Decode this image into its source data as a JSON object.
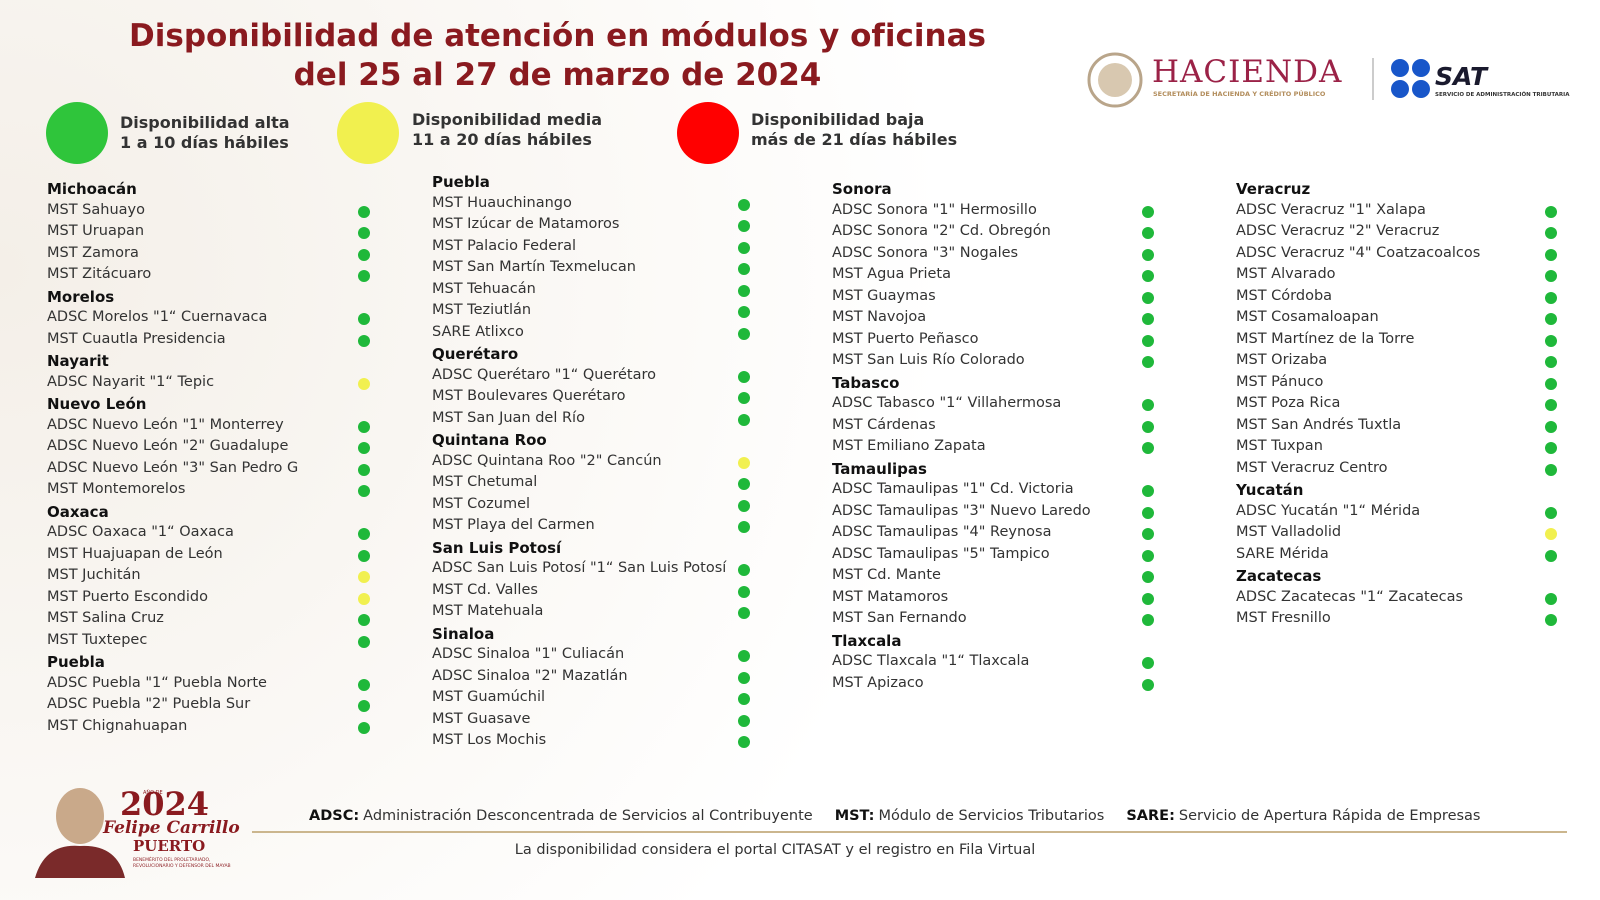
{
  "header": {
    "title_lines": [
      "Disponibilidad de atención en módulos y oficinas",
      "del 25 al 27 de marzo de 2024"
    ],
    "hacienda": "HACIENDA",
    "hacienda_sub": "SECRETARÍA DE HACIENDA Y CRÉDITO PÚBLICO",
    "sat": "SAT",
    "sat_sub": "SERVICIO DE ADMINISTRACIÓN TRIBUTARIA"
  },
  "legend": [
    {
      "color": "#2fc53b",
      "lines": [
        "Disponibilidad alta",
        "1 a 10 días hábiles"
      ]
    },
    {
      "color": "#f1f04f",
      "lines": [
        "Disponibilidad media",
        "11 a 20 días hábiles"
      ]
    },
    {
      "color": "#ff0000",
      "lines": [
        "Disponibilidad baja",
        "más de 21 días hábiles"
      ]
    }
  ],
  "columns": [
    {
      "groups": [
        {
          "state": "Michoacán",
          "offices": [
            {
              "name": "MST Sahuayo",
              "color": "#1fb83a"
            },
            {
              "name": "MST Uruapan",
              "color": "#1fb83a"
            },
            {
              "name": "MST Zamora",
              "color": "#1fb83a"
            },
            {
              "name": "MST Zitácuaro",
              "color": "#1fb83a"
            }
          ]
        },
        {
          "state": "Morelos",
          "offices": [
            {
              "name": "ADSC Morelos \"1“ Cuernavaca",
              "color": "#1fb83a"
            },
            {
              "name": "MST Cuautla Presidencia",
              "color": "#1fb83a"
            }
          ]
        },
        {
          "state": "Nayarit",
          "offices": [
            {
              "name": "ADSC Nayarit \"1“ Tepic",
              "color": "#f1f04f"
            }
          ]
        },
        {
          "state": "Nuevo León",
          "offices": [
            {
              "name": "ADSC Nuevo León \"1\" Monterrey",
              "color": "#1fb83a"
            },
            {
              "name": "ADSC Nuevo León \"2\" Guadalupe",
              "color": "#1fb83a"
            },
            {
              "name": "ADSC Nuevo León \"3\" San Pedro G",
              "color": "#1fb83a"
            },
            {
              "name": "MST Montemorelos",
              "color": "#1fb83a"
            }
          ]
        },
        {
          "state": "Oaxaca",
          "offices": [
            {
              "name": "ADSC Oaxaca \"1“ Oaxaca",
              "color": "#1fb83a"
            },
            {
              "name": "MST Huajuapan de León",
              "color": "#1fb83a"
            },
            {
              "name": "MST Juchitán",
              "color": "#f1f04f"
            },
            {
              "name": "MST Puerto Escondido",
              "color": "#f1f04f"
            },
            {
              "name": "MST Salina Cruz",
              "color": "#1fb83a"
            },
            {
              "name": "MST Tuxtepec",
              "color": "#1fb83a"
            }
          ]
        },
        {
          "state": "Puebla",
          "offices": [
            {
              "name": "ADSC Puebla \"1“ Puebla Norte",
              "color": "#1fb83a"
            },
            {
              "name": "ADSC Puebla \"2\" Puebla Sur",
              "color": "#1fb83a"
            },
            {
              "name": "MST Chignahuapan",
              "color": "#1fb83a"
            }
          ]
        }
      ]
    },
    {
      "groups": [
        {
          "state": "Puebla",
          "offices": [
            {
              "name": "MST Huauchinango",
              "color": "#1fb83a"
            },
            {
              "name": "MST Izúcar de Matamoros",
              "color": "#1fb83a"
            },
            {
              "name": "MST Palacio Federal",
              "color": "#1fb83a"
            },
            {
              "name": "MST San Martín Texmelucan",
              "color": "#1fb83a"
            },
            {
              "name": "MST Tehuacán",
              "color": "#1fb83a"
            },
            {
              "name": "MST Teziutlán",
              "color": "#1fb83a"
            },
            {
              "name": "SARE Atlixco",
              "color": "#1fb83a"
            }
          ]
        },
        {
          "state": "Querétaro",
          "offices": [
            {
              "name": "ADSC Querétaro \"1“ Querétaro",
              "color": "#1fb83a"
            },
            {
              "name": "MST Boulevares Querétaro",
              "color": "#1fb83a"
            },
            {
              "name": "MST San Juan del Río",
              "color": "#1fb83a"
            }
          ]
        },
        {
          "state": "Quintana Roo",
          "offices": [
            {
              "name": "ADSC Quintana Roo \"2\" Cancún",
              "color": "#f1f04f"
            },
            {
              "name": "MST Chetumal",
              "color": "#1fb83a"
            },
            {
              "name": "MST Cozumel",
              "color": "#1fb83a"
            },
            {
              "name": "MST Playa del Carmen",
              "color": "#1fb83a"
            }
          ]
        },
        {
          "state": "San Luis Potosí",
          "offices": [
            {
              "name": "ADSC San Luis Potosí \"1“ San Luis Potosí",
              "color": "#1fb83a"
            },
            {
              "name": "MST Cd. Valles",
              "color": "#1fb83a"
            },
            {
              "name": "MST Matehuala",
              "color": "#1fb83a"
            }
          ]
        },
        {
          "state": "Sinaloa",
          "offices": [
            {
              "name": "ADSC Sinaloa \"1\" Culiacán",
              "color": "#1fb83a"
            },
            {
              "name": "ADSC Sinaloa \"2\" Mazatlán",
              "color": "#1fb83a"
            },
            {
              "name": "MST Guamúchil",
              "color": "#1fb83a"
            },
            {
              "name": "MST Guasave",
              "color": "#1fb83a"
            },
            {
              "name": "MST Los Mochis",
              "color": "#1fb83a"
            }
          ]
        }
      ]
    },
    {
      "groups": [
        {
          "state": "Sonora",
          "offices": [
            {
              "name": "ADSC Sonora \"1\" Hermosillo",
              "color": "#1fb83a"
            },
            {
              "name": "ADSC Sonora \"2\" Cd. Obregón",
              "color": "#1fb83a"
            },
            {
              "name": "ADSC Sonora \"3\" Nogales",
              "color": "#1fb83a"
            },
            {
              "name": "MST Agua Prieta",
              "color": "#1fb83a"
            },
            {
              "name": "MST Guaymas",
              "color": "#1fb83a"
            },
            {
              "name": "MST Navojoa",
              "color": "#1fb83a"
            },
            {
              "name": "MST Puerto Peñasco",
              "color": "#1fb83a"
            },
            {
              "name": "MST San Luis Río Colorado",
              "color": "#1fb83a"
            }
          ]
        },
        {
          "state": "Tabasco",
          "offices": [
            {
              "name": "ADSC Tabasco \"1“ Villahermosa",
              "color": "#1fb83a"
            },
            {
              "name": "MST Cárdenas",
              "color": "#1fb83a"
            },
            {
              "name": "MST Emiliano Zapata",
              "color": "#1fb83a"
            }
          ]
        },
        {
          "state": "Tamaulipas",
          "offices": [
            {
              "name": "ADSC Tamaulipas \"1\" Cd. Victoria",
              "color": "#1fb83a"
            },
            {
              "name": "ADSC Tamaulipas \"3\" Nuevo Laredo",
              "color": "#1fb83a"
            },
            {
              "name": "ADSC Tamaulipas \"4\" Reynosa",
              "color": "#1fb83a"
            },
            {
              "name": "ADSC Tamaulipas \"5\" Tampico",
              "color": "#1fb83a"
            },
            {
              "name": "MST Cd. Mante",
              "color": "#1fb83a"
            },
            {
              "name": "MST Matamoros",
              "color": "#1fb83a"
            },
            {
              "name": "MST San Fernando",
              "color": "#1fb83a"
            }
          ]
        },
        {
          "state": "Tlaxcala",
          "offices": [
            {
              "name": "ADSC Tlaxcala \"1“ Tlaxcala",
              "color": "#1fb83a"
            },
            {
              "name": "MST Apizaco",
              "color": "#1fb83a"
            }
          ]
        }
      ]
    },
    {
      "groups": [
        {
          "state": "Veracruz",
          "offices": [
            {
              "name": "ADSC Veracruz \"1\" Xalapa",
              "color": "#1fb83a"
            },
            {
              "name": "ADSC Veracruz \"2\" Veracruz",
              "color": "#1fb83a"
            },
            {
              "name": "ADSC Veracruz \"4\" Coatzacoalcos",
              "color": "#1fb83a"
            },
            {
              "name": "MST Alvarado",
              "color": "#1fb83a"
            },
            {
              "name": "MST Córdoba",
              "color": "#1fb83a"
            },
            {
              "name": "MST Cosamaloapan",
              "color": "#1fb83a"
            },
            {
              "name": "MST Martínez de la Torre",
              "color": "#1fb83a"
            },
            {
              "name": "MST Orizaba",
              "color": "#1fb83a"
            },
            {
              "name": "MST Pánuco",
              "color": "#1fb83a"
            },
            {
              "name": "MST Poza Rica",
              "color": "#1fb83a"
            },
            {
              "name": "MST San Andrés Tuxtla",
              "color": "#1fb83a"
            },
            {
              "name": "MST Tuxpan",
              "color": "#1fb83a"
            },
            {
              "name": "MST Veracruz Centro",
              "color": "#1fb83a"
            }
          ]
        },
        {
          "state": "Yucatán",
          "offices": [
            {
              "name": "ADSC Yucatán \"1“ Mérida",
              "color": "#1fb83a"
            },
            {
              "name": "MST Valladolid",
              "color": "#f1f04f"
            },
            {
              "name": "SARE Mérida",
              "color": "#1fb83a"
            }
          ]
        },
        {
          "state": "Zacatecas",
          "offices": [
            {
              "name": "ADSC Zacatecas \"1“ Zacatecas",
              "color": "#1fb83a"
            },
            {
              "name": "MST Fresnillo",
              "color": "#1fb83a"
            }
          ]
        }
      ]
    }
  ],
  "footer": {
    "glossary": [
      {
        "term": "ADSC:",
        "meaning": "Administración Desconcentrada de Servicios al Contribuyente"
      },
      {
        "term": "MST:",
        "meaning": "Módulo de Servicios Tributarios"
      },
      {
        "term": "SARE:",
        "meaning": "Servicio de Apertura Rápida de Empresas"
      }
    ],
    "note": "La disponibilidad considera el portal CITASAT y el registro en Fila Virtual",
    "emblem": {
      "year": "2024",
      "year_caption": "AÑO DE",
      "name": "Felipe Carrillo",
      "surname": "PUERTO",
      "motto": "BENEMÉRITO DEL PROLETARIADO, REVOLUCIONARIO Y DEFENSOR DEL MAYAB"
    }
  }
}
